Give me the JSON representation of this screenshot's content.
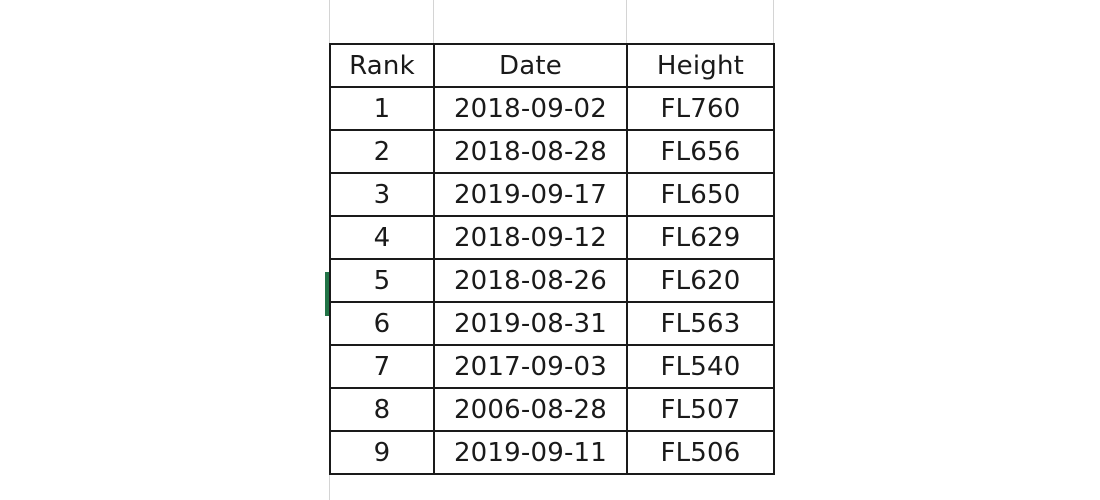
{
  "table": {
    "headers": [
      "Rank",
      "Date",
      "Height"
    ],
    "rows": [
      [
        "1",
        "2018-09-02",
        "FL760"
      ],
      [
        "2",
        "2018-08-28",
        "FL656"
      ],
      [
        "3",
        "2019-09-17",
        "FL650"
      ],
      [
        "4",
        "2018-09-12",
        "FL629"
      ],
      [
        "5",
        "2018-08-26",
        "FL620"
      ],
      [
        "6",
        "2019-08-31",
        "FL563"
      ],
      [
        "7",
        "2017-09-03",
        "FL540"
      ],
      [
        "8",
        "2006-08-28",
        "FL507"
      ],
      [
        "9",
        "2019-09-11",
        "FL506"
      ]
    ]
  },
  "colors": {
    "border": "#1a1a1a",
    "gridline": "#d4d4d4",
    "active_cell_marker": "#217346"
  }
}
